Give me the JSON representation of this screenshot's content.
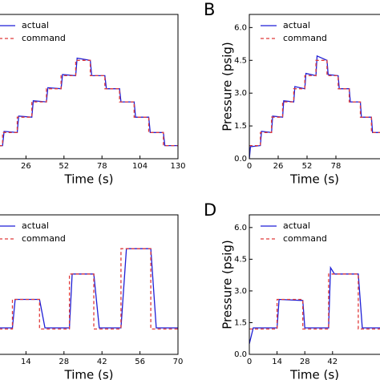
{
  "chart_data": [
    {
      "type": "line",
      "xlabel": "Time (s)",
      "xlim": [
        0,
        130
      ],
      "ylim": [
        0,
        6.6
      ],
      "xticks": [
        26,
        52,
        78,
        104,
        130
      ],
      "series": [
        {
          "name": "actual",
          "color": "#1f1fd6",
          "dash": false,
          "x": [
            0,
            10,
            11,
            20,
            21,
            30,
            31,
            40,
            41,
            50,
            51,
            60,
            61,
            70,
            71,
            80,
            81,
            90,
            91,
            100,
            101,
            110,
            111,
            120,
            121,
            130
          ],
          "values": [
            0.55,
            0.6,
            1.25,
            1.2,
            1.95,
            1.9,
            2.65,
            2.6,
            3.25,
            3.2,
            3.85,
            3.8,
            4.6,
            4.5,
            3.8,
            3.8,
            3.2,
            3.2,
            2.6,
            2.6,
            1.9,
            1.9,
            1.2,
            1.2,
            0.6,
            0.6
          ]
        },
        {
          "name": "command",
          "color": "#e03a3a",
          "dash": true,
          "x": [
            0,
            10,
            10,
            20,
            20,
            30,
            30,
            40,
            40,
            50,
            50,
            60,
            60,
            70,
            70,
            80,
            80,
            90,
            90,
            100,
            100,
            110,
            110,
            120,
            120,
            130
          ],
          "values": [
            0.6,
            0.6,
            1.2,
            1.2,
            1.9,
            1.9,
            2.6,
            2.6,
            3.2,
            3.2,
            3.8,
            3.8,
            4.5,
            4.5,
            3.8,
            3.8,
            3.2,
            3.2,
            2.6,
            2.6,
            1.9,
            1.9,
            1.2,
            1.2,
            0.6,
            0.6
          ]
        }
      ]
    },
    {
      "type": "line",
      "panel_label": "B",
      "xlabel": "Time (s)",
      "ylabel": "Pressure (psig)",
      "xlim": [
        0,
        130
      ],
      "ylim": [
        0,
        6.6
      ],
      "xticks": [
        0,
        26,
        52,
        78
      ],
      "yticks": [
        {
          "value": 0,
          "label": "0.0"
        },
        1.5,
        {
          "value": 3,
          "label": "3.0"
        },
        4.5,
        {
          "value": 6,
          "label": "6.0"
        }
      ],
      "series": [
        {
          "name": "actual",
          "color": "#1f1fd6",
          "dash": false,
          "x": [
            0,
            1,
            10,
            11,
            20,
            21,
            30,
            31,
            40,
            41,
            50,
            51,
            60,
            61,
            70,
            71,
            80,
            81,
            90,
            91,
            100,
            101,
            110,
            111,
            120,
            121,
            130
          ],
          "values": [
            0.0,
            0.55,
            0.6,
            1.25,
            1.2,
            1.95,
            1.9,
            2.65,
            2.6,
            3.3,
            3.2,
            3.9,
            3.8,
            4.7,
            4.5,
            3.85,
            3.8,
            3.2,
            3.2,
            2.6,
            2.6,
            1.9,
            1.9,
            1.2,
            1.2,
            0.6,
            0.6
          ]
        },
        {
          "name": "command",
          "color": "#e03a3a",
          "dash": true,
          "x": [
            0,
            10,
            10,
            20,
            20,
            30,
            30,
            40,
            40,
            50,
            50,
            60,
            60,
            70,
            70,
            80,
            80,
            90,
            90,
            100,
            100,
            110,
            110,
            120,
            120,
            130
          ],
          "values": [
            0.6,
            0.6,
            1.2,
            1.2,
            1.9,
            1.9,
            2.6,
            2.6,
            3.2,
            3.2,
            3.8,
            3.8,
            4.5,
            4.5,
            3.8,
            3.8,
            3.2,
            3.2,
            2.6,
            2.6,
            1.9,
            1.9,
            1.2,
            1.2,
            0.6,
            0.6
          ]
        }
      ]
    },
    {
      "type": "line",
      "xlabel": "Time (s)",
      "xlim": [
        0,
        70
      ],
      "ylim": [
        0,
        6.6
      ],
      "xticks": [
        14,
        28,
        42,
        56,
        70
      ],
      "series": [
        {
          "name": "actual",
          "color": "#1f1fd6",
          "dash": false,
          "x": [
            0,
            9,
            10,
            19,
            21,
            30,
            31,
            39,
            41,
            49,
            51,
            60,
            62,
            70
          ],
          "values": [
            1.25,
            1.25,
            2.6,
            2.6,
            1.25,
            1.25,
            3.8,
            3.8,
            1.25,
            1.25,
            5.0,
            5.0,
            1.25,
            1.25
          ]
        },
        {
          "name": "command",
          "color": "#e03a3a",
          "dash": true,
          "x": [
            0,
            9,
            9,
            19,
            19,
            30,
            30,
            39,
            39,
            49,
            49,
            60,
            60,
            70
          ],
          "values": [
            1.2,
            1.2,
            2.6,
            2.6,
            1.2,
            1.2,
            3.8,
            3.8,
            1.2,
            1.2,
            5.0,
            5.0,
            1.2,
            1.2
          ]
        }
      ]
    },
    {
      "type": "line",
      "panel_label": "D",
      "xlabel": "Time (s)",
      "ylabel": "Pressure (psig)",
      "xlim": [
        0,
        70
      ],
      "ylim": [
        0,
        6.6
      ],
      "xticks": [
        0,
        14,
        28,
        42
      ],
      "yticks": [
        {
          "value": 0,
          "label": "0.0"
        },
        1.5,
        {
          "value": 3,
          "label": "3.0"
        },
        4.5,
        {
          "value": 6,
          "label": "6.0"
        }
      ],
      "series": [
        {
          "name": "actual",
          "color": "#1f1fd6",
          "dash": false,
          "x": [
            0,
            2,
            14,
            15,
            27,
            28,
            40,
            41,
            43,
            55,
            57,
            70
          ],
          "values": [
            0.5,
            1.25,
            1.25,
            2.6,
            2.55,
            1.25,
            1.25,
            4.1,
            3.8,
            3.8,
            1.25,
            1.25
          ]
        },
        {
          "name": "command",
          "color": "#e03a3a",
          "dash": true,
          "x": [
            0,
            14,
            14,
            27,
            27,
            40,
            40,
            55,
            55,
            70
          ],
          "values": [
            1.2,
            1.2,
            2.6,
            2.6,
            1.2,
            1.2,
            3.8,
            3.8,
            1.2,
            1.2
          ]
        }
      ]
    }
  ]
}
